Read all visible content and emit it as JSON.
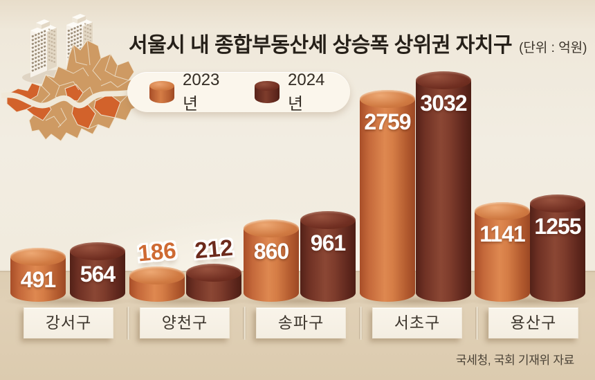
{
  "title": "서울시 내 종합부동산세 상승폭 상위권 자치구",
  "unit_label": "(단위 : 억원)",
  "source": "국세청, 국회 기재위 자료",
  "legend": {
    "items": [
      {
        "label": "2023년",
        "color": "#d07a42"
      },
      {
        "label": "2024년",
        "color": "#712f22"
      }
    ]
  },
  "map": {
    "label": "서울시 자치구 지도",
    "highlighted_districts": [
      "강서구",
      "양천구",
      "용산구",
      "서초구",
      "송파구"
    ],
    "base_color": "#ce9a63",
    "highlight_color": "#d2622b"
  },
  "colors": {
    "background": "#f1ebde",
    "ground": "#e0d0b6",
    "bar_2023": "#d07a42",
    "bar_2024": "#712f22",
    "label_box": "#f7f2e8",
    "title_text": "#262019",
    "value_2023_outlined": "#ce6a33",
    "value_2024_outlined": "#6c2a1c"
  },
  "chart_data": {
    "type": "bar",
    "title": "서울시 내 종합부동산세 상승폭 상위권 자치구",
    "unit": "억원",
    "categories": [
      "강서구",
      "양천구",
      "송파구",
      "서초구",
      "용산구"
    ],
    "series": [
      {
        "name": "2023년",
        "color": "#d07a42",
        "values": [
          491,
          186,
          860,
          2759,
          1141
        ]
      },
      {
        "name": "2024년",
        "color": "#712f22",
        "values": [
          564,
          212,
          961,
          3032,
          1255
        ]
      }
    ],
    "value_labels_visible": true,
    "legend_position": "top-left",
    "grid": false,
    "source": "국세청, 국회 기재위 자료"
  }
}
